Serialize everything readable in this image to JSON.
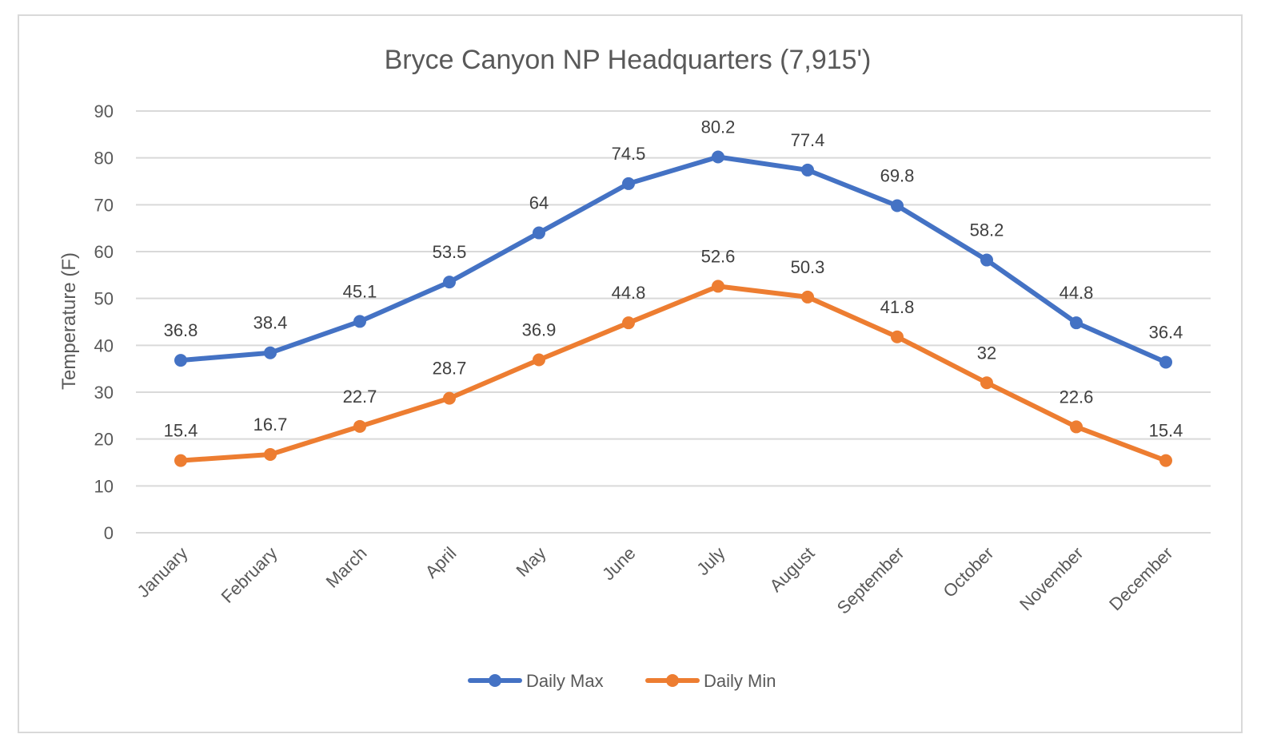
{
  "chart_data": {
    "type": "line",
    "title": "Bryce Canyon  NP Headquarters (7,915')",
    "xlabel": "",
    "ylabel": "Temperature (F)",
    "ylim": [
      0,
      90
    ],
    "yticks": [
      0,
      10,
      20,
      30,
      40,
      50,
      60,
      70,
      80,
      90
    ],
    "grid": true,
    "legend_position": "bottom",
    "categories": [
      "January",
      "February",
      "March",
      "April",
      "May",
      "June",
      "July",
      "August",
      "September",
      "October",
      "November",
      "December"
    ],
    "series": [
      {
        "name": "Daily Max",
        "color": "#4472c4",
        "values": [
          36.8,
          38.4,
          45.1,
          53.5,
          64,
          74.5,
          80.2,
          77.4,
          69.8,
          58.2,
          44.8,
          36.4
        ]
      },
      {
        "name": "Daily Min",
        "color": "#ed7d31",
        "values": [
          15.4,
          16.7,
          22.7,
          28.7,
          36.9,
          44.8,
          52.6,
          50.3,
          41.8,
          32,
          22.6,
          15.4
        ]
      }
    ]
  }
}
